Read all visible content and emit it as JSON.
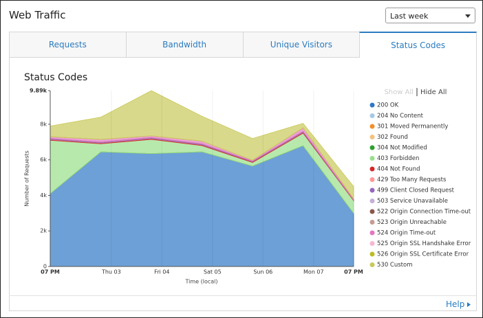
{
  "header": {
    "title": "Web Traffic",
    "range_select": "Last week"
  },
  "tabs": [
    "Requests",
    "Bandwidth",
    "Unique Visitors",
    "Status Codes"
  ],
  "active_tab": 3,
  "legend_controls": [
    "Show All",
    "Hide All"
  ],
  "footer": {
    "help": "Help"
  },
  "chart_data": {
    "type": "stacked-area",
    "title": "Status Codes",
    "x_label": "Time (local)",
    "y_label": "Number of Requests",
    "x": [
      0,
      24,
      48,
      72,
      96,
      120,
      144
    ],
    "xlim": [
      0,
      144
    ],
    "xticks": [
      {
        "value": 0,
        "label": "07 PM"
      },
      {
        "value": 29,
        "label": "Thu 03"
      },
      {
        "value": 53,
        "label": "Fri 04"
      },
      {
        "value": 77,
        "label": "Sat 05"
      },
      {
        "value": 101,
        "label": "Sun 06"
      },
      {
        "value": 125,
        "label": "Mon 07"
      },
      {
        "value": 144,
        "label": "07 PM"
      }
    ],
    "ylim": [
      0,
      9890
    ],
    "yticks": [
      0,
      {
        "value": 2000,
        "label": "2k"
      },
      {
        "value": 4000,
        "label": "4k"
      },
      {
        "value": 6000,
        "label": "6k"
      },
      {
        "value": 8000,
        "label": "8k"
      },
      {
        "value": 9890,
        "label": "9.89k"
      }
    ],
    "x_grid": true,
    "series": [
      {
        "name": "200 OK",
        "color": "#2f78c4",
        "values": [
          4100,
          6450,
          6350,
          6450,
          5650,
          6800,
          3000
        ]
      },
      {
        "name": "204 No Content",
        "color": "#a6c8e8",
        "values": [
          0,
          0,
          0,
          0,
          0,
          0,
          0
        ]
      },
      {
        "name": "301 Moved Permanently",
        "color": "#f28e2b",
        "values": [
          0,
          0,
          0,
          0,
          0,
          0,
          0
        ]
      },
      {
        "name": "302 Found",
        "color": "#f6c27b",
        "values": [
          0,
          0,
          0,
          0,
          0,
          0,
          0
        ]
      },
      {
        "name": "304 Not Modified",
        "color": "#2ca02c",
        "values": [
          0,
          0,
          0,
          0,
          0,
          0,
          0
        ]
      },
      {
        "name": "403 Forbidden",
        "color": "#98df8a",
        "values": [
          3000,
          450,
          800,
          350,
          200,
          700,
          700
        ]
      },
      {
        "name": "404 Not Found",
        "color": "#d62728",
        "values": [
          50,
          50,
          50,
          50,
          50,
          50,
          30
        ]
      },
      {
        "name": "429 Too Many Requests",
        "color": "#ff9896",
        "values": [
          0,
          0,
          0,
          0,
          0,
          0,
          0
        ]
      },
      {
        "name": "499 Client Closed Request",
        "color": "#9467bd",
        "values": [
          50,
          50,
          50,
          50,
          30,
          50,
          30
        ]
      },
      {
        "name": "503 Service Unavailable",
        "color": "#c5b0d5",
        "values": [
          0,
          0,
          0,
          0,
          0,
          0,
          0
        ]
      },
      {
        "name": "522 Origin Connection Time-out",
        "color": "#8c564b",
        "values": [
          0,
          0,
          0,
          0,
          0,
          0,
          0
        ]
      },
      {
        "name": "523 Origin Unreachable",
        "color": "#c49c94",
        "values": [
          0,
          0,
          0,
          0,
          0,
          0,
          0
        ]
      },
      {
        "name": "524 Origin Time-out",
        "color": "#e377c2",
        "values": [
          100,
          150,
          100,
          150,
          50,
          200,
          50
        ]
      },
      {
        "name": "525 Origin SSL Handshake Error",
        "color": "#f7b6d2",
        "values": [
          0,
          0,
          0,
          0,
          0,
          0,
          0
        ]
      },
      {
        "name": "526 Origin SSL Certificate Error",
        "color": "#bcbd22",
        "values": [
          0,
          0,
          0,
          0,
          0,
          0,
          0
        ]
      },
      {
        "name": "530 Custom",
        "color": "#c9c95a",
        "values": [
          600,
          1250,
          2540,
          1400,
          1220,
          250,
          690
        ]
      }
    ]
  }
}
